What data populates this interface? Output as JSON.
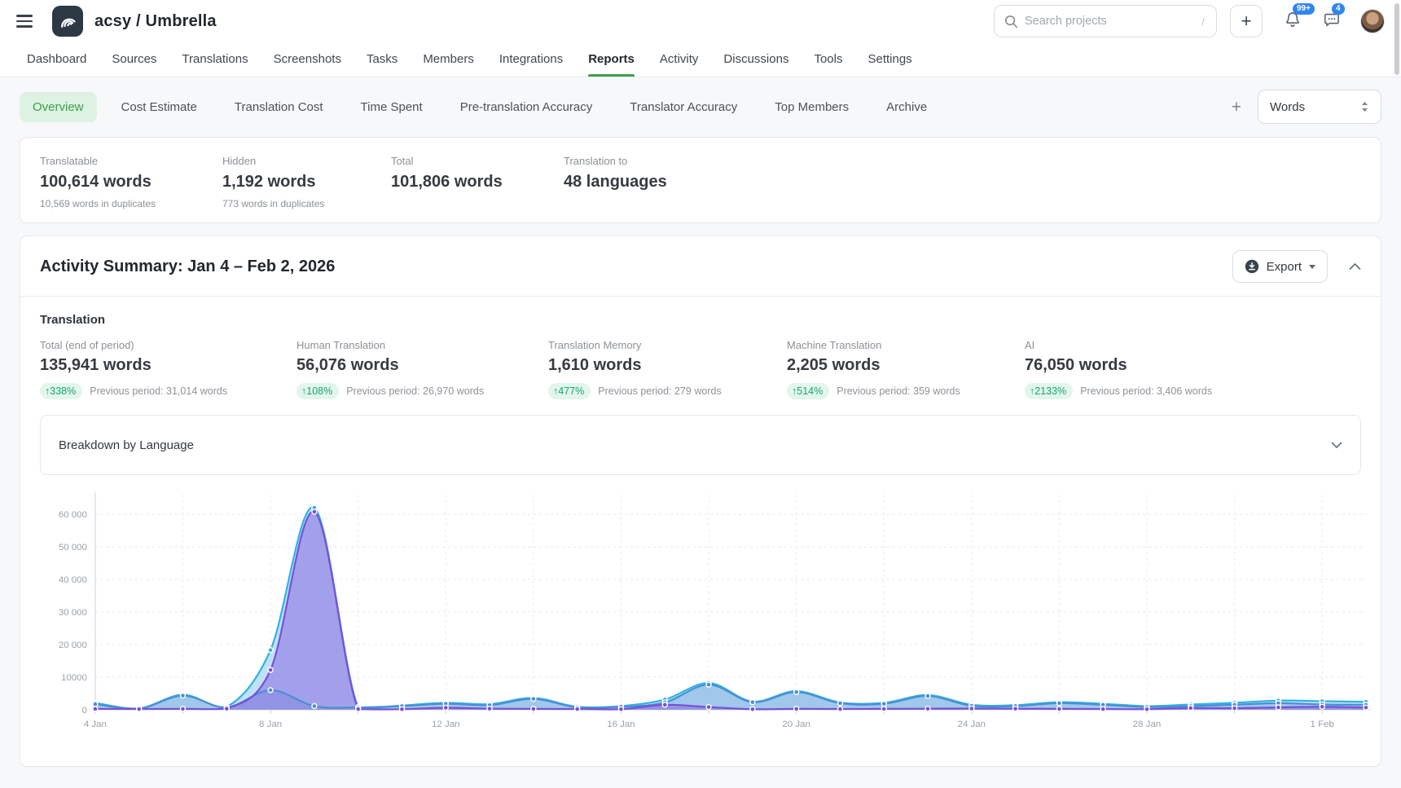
{
  "header": {
    "project_title": "acsy / Umbrella",
    "search": {
      "placeholder": "Search projects",
      "shortcut": "/"
    },
    "notifications_badge": "99+",
    "messages_badge": "4",
    "nav": [
      {
        "label": "Dashboard",
        "active": false
      },
      {
        "label": "Sources",
        "active": false
      },
      {
        "label": "Translations",
        "active": false
      },
      {
        "label": "Screenshots",
        "active": false
      },
      {
        "label": "Tasks",
        "active": false
      },
      {
        "label": "Members",
        "active": false
      },
      {
        "label": "Integrations",
        "active": false
      },
      {
        "label": "Reports",
        "active": true
      },
      {
        "label": "Activity",
        "active": false
      },
      {
        "label": "Discussions",
        "active": false
      },
      {
        "label": "Tools",
        "active": false
      },
      {
        "label": "Settings",
        "active": false
      }
    ]
  },
  "subnav": {
    "tabs": [
      {
        "label": "Overview",
        "active": true
      },
      {
        "label": "Cost Estimate",
        "active": false
      },
      {
        "label": "Translation Cost",
        "active": false
      },
      {
        "label": "Time Spent",
        "active": false
      },
      {
        "label": "Pre-translation Accuracy",
        "active": false
      },
      {
        "label": "Translator Accuracy",
        "active": false
      },
      {
        "label": "Top Members",
        "active": false
      },
      {
        "label": "Archive",
        "active": false
      }
    ],
    "add_label": "+",
    "metric_selector_value": "Words"
  },
  "project_stats": {
    "columns": [
      {
        "label": "Translatable",
        "value": "100,614 words",
        "note": "10,569 words in duplicates"
      },
      {
        "label": "Hidden",
        "value": "1,192 words",
        "note": "773 words in duplicates"
      },
      {
        "label": "Total",
        "value": "101,806 words",
        "note": ""
      },
      {
        "label": "Translation to",
        "value": "48 languages",
        "note": ""
      }
    ]
  },
  "activity_summary": {
    "title": "Activity Summary: Jan 4 – Feb 2, 2026",
    "export_label": "Export",
    "section_title": "Translation",
    "metrics": [
      {
        "label": "Total (end of period)",
        "value": "135,941 words",
        "change": "338%",
        "previous": "Previous period: 31,014 words"
      },
      {
        "label": "Human Translation",
        "value": "56,076 words",
        "change": "108%",
        "previous": "Previous period: 26,970 words"
      },
      {
        "label": "Translation Memory",
        "value": "1,610 words",
        "change": "477%",
        "previous": "Previous period: 279 words"
      },
      {
        "label": "Machine Translation",
        "value": "2,205 words",
        "change": "514%",
        "previous": "Previous period: 359 words"
      },
      {
        "label": "AI",
        "value": "76,050 words",
        "change": "2133%",
        "previous": "Previous period: 3,406 words"
      }
    ],
    "breakdown_label": "Breakdown by Language"
  },
  "chart_data": {
    "type": "area",
    "title": "",
    "xlabel": "",
    "ylabel": "",
    "x": [
      "4 Jan",
      "5 Jan",
      "6 Jan",
      "7 Jan",
      "8 Jan",
      "9 Jan",
      "10 Jan",
      "11 Jan",
      "12 Jan",
      "13 Jan",
      "14 Jan",
      "15 Jan",
      "16 Jan",
      "17 Jan",
      "18 Jan",
      "19 Jan",
      "20 Jan",
      "21 Jan",
      "22 Jan",
      "23 Jan",
      "24 Jan",
      "25 Jan",
      "26 Jan",
      "27 Jan",
      "28 Jan",
      "29 Jan",
      "30 Jan",
      "31 Jan",
      "1 Feb",
      "2 Feb"
    ],
    "x_tick_labels": [
      "4 Jan",
      "8 Jan",
      "12 Jan",
      "16 Jan",
      "20 Jan",
      "24 Jan",
      "28 Jan",
      "1 Feb"
    ],
    "y_ticks": [
      "0",
      "10000",
      "20 000",
      "30 000",
      "40 000",
      "50 000",
      "60 000"
    ],
    "ylim": [
      0,
      65500
    ],
    "grid": true,
    "legend_position": "none",
    "series": [
      {
        "name": "cyan",
        "color": "#2fb3e3",
        "fill": "rgba(141,202,240,0.55)",
        "values": [
          2100,
          400,
          4600,
          900,
          18300,
          62000,
          800,
          1300,
          2100,
          1700,
          3600,
          900,
          1100,
          3100,
          8200,
          2500,
          5700,
          2200,
          2100,
          4500,
          1500,
          1400,
          2300,
          1800,
          1100,
          1600,
          2100,
          2800,
          2600,
          2400
        ]
      },
      {
        "name": "blue",
        "color": "#4a8fd4",
        "fill": "rgba(126,174,223,0.5)",
        "values": [
          1700,
          300,
          4300,
          700,
          6000,
          1100,
          700,
          1100,
          1800,
          1400,
          3300,
          700,
          900,
          2200,
          7700,
          2300,
          5400,
          2000,
          1800,
          4200,
          1200,
          1100,
          2000,
          1500,
          800,
          1100,
          1500,
          2000,
          1600,
          1500
        ]
      },
      {
        "name": "purple",
        "color": "#7a4fd8",
        "fill": "rgba(132,94,222,0.5)",
        "values": [
          250,
          200,
          250,
          300,
          12200,
          60800,
          200,
          150,
          600,
          300,
          250,
          200,
          150,
          1500,
          800,
          150,
          250,
          200,
          250,
          300,
          350,
          300,
          250,
          200,
          150,
          500,
          450,
          700,
          900,
          650
        ]
      }
    ]
  },
  "colors": {
    "accent_green": "#3f9e4d",
    "active_tab_bg": "#def2e2",
    "badge_blue": "#2e86f0",
    "change_badge_bg": "#e2f6ec",
    "change_badge_text": "#19a470"
  }
}
